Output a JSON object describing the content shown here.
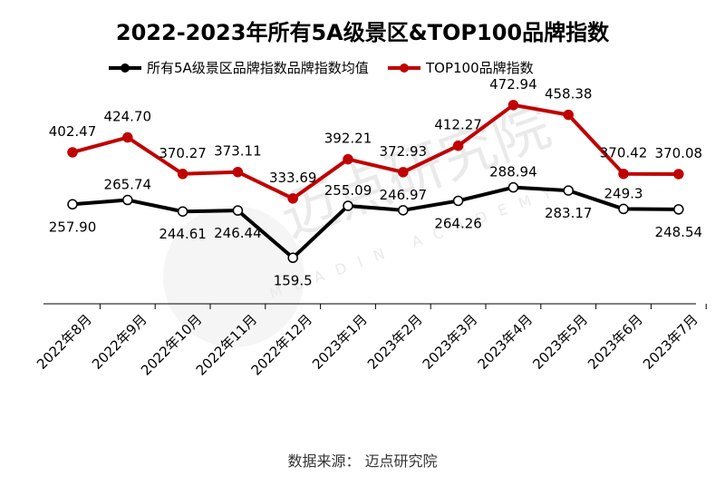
{
  "chart_data": {
    "type": "line",
    "title": "2022-2023年所有5A级景区&TOP100品牌指数",
    "categories": [
      "2022年8月",
      "2022年9月",
      "2022年10月",
      "2022年11月",
      "2022年12月",
      "2023年1月",
      "2023年2月",
      "2023年3月",
      "2023年4月",
      "2023年5月",
      "2023年6月",
      "2023年7月"
    ],
    "series": [
      {
        "name": "所有5A级景区品牌指数品牌指数均值",
        "color": "#000000",
        "values": [
          257.9,
          265.74,
          244.61,
          246.44,
          159.5,
          255.09,
          246.97,
          264.26,
          288.94,
          283.17,
          249.3,
          248.54
        ],
        "labels": [
          "257.90",
          "265.74",
          "244.61",
          "246.44",
          "159.5",
          "255.09",
          "246.97",
          "264.26",
          "288.94",
          "283.17",
          "249.3",
          "248.54"
        ]
      },
      {
        "name": "TOP100品牌指数",
        "color": "#c00000",
        "values": [
          402.47,
          424.7,
          370.27,
          373.11,
          333.69,
          392.21,
          372.93,
          412.27,
          472.94,
          458.38,
          370.42,
          370.08
        ],
        "labels": [
          "402.47",
          "424.70",
          "370.27",
          "373.11",
          "333.69",
          "392.21",
          "372.93",
          "412.27",
          "472.94",
          "458.38",
          "370.42",
          "370.08"
        ]
      }
    ],
    "legend_position": "top",
    "grid": false
  },
  "source": "数据来源：  迈点研究院",
  "watermark": {
    "brand": "迈点研究院",
    "sub": "MEADIN ACADEMY"
  }
}
